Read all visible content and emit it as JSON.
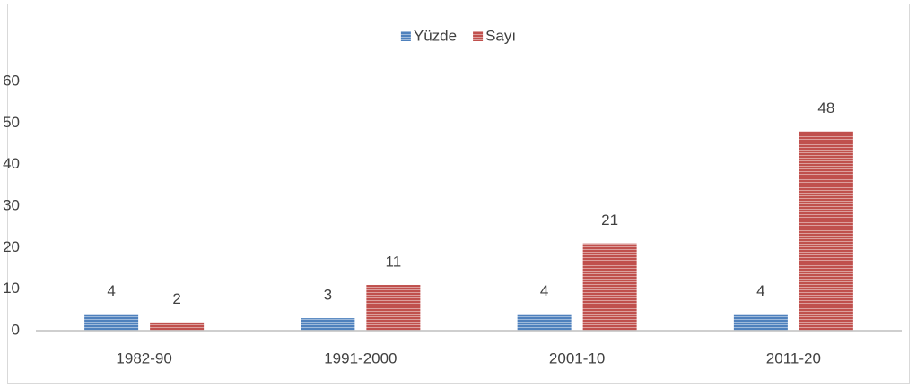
{
  "chart_data": {
    "type": "bar",
    "categories": [
      "1982-90",
      "1991-2000",
      "2001-10",
      "2011-20"
    ],
    "series": [
      {
        "name": "Yüzde",
        "color": "#4f81bd",
        "values": [
          4,
          3,
          4,
          4
        ]
      },
      {
        "name": "Sayı",
        "color": "#c0504d",
        "values": [
          2,
          11,
          21,
          48
        ]
      }
    ],
    "ylim": [
      0,
      60
    ],
    "yticks": [
      0,
      10,
      20,
      30,
      40,
      50,
      60
    ],
    "grid": false,
    "legend": "top"
  }
}
